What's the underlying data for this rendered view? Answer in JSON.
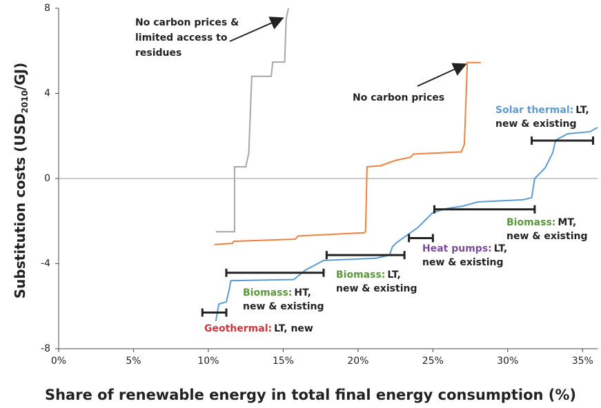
{
  "chart_data": {
    "type": "line",
    "xlabel": "Share of renewable energy in total final energy consumption (%)",
    "ylabel": {
      "text": "Substitution costs (USD",
      "sub": "2010",
      "after": "/GJ)"
    },
    "xlim": [
      0,
      36
    ],
    "ylim": [
      -8,
      8
    ],
    "xticks": [
      {
        "value": 0,
        "label": "0%"
      },
      {
        "value": 5,
        "label": "5%"
      },
      {
        "value": 10,
        "label": "10%"
      },
      {
        "value": 15,
        "label": "15%"
      },
      {
        "value": 20,
        "label": "20%"
      },
      {
        "value": 25,
        "label": "25%"
      },
      {
        "value": 30,
        "label": "30%"
      },
      {
        "value": 35,
        "label": "35%"
      }
    ],
    "yticks": [
      -8,
      -4,
      0,
      4,
      8
    ],
    "zero_line": true,
    "series": [
      {
        "color": "#a6a6a6",
        "x": [
          10.5,
          11.75,
          11.75,
          12.5,
          12.7,
          12.9,
          14.2,
          14.3,
          15.1,
          15.2,
          15.35
        ],
        "values": [
          -2.5,
          -2.5,
          0.55,
          0.55,
          1.2,
          4.8,
          4.8,
          5.47,
          5.47,
          7.5,
          8
        ]
      },
      {
        "color": "#f47f3c",
        "x": [
          10.4,
          11.6,
          11.7,
          15.8,
          16.0,
          20.4,
          20.5,
          20.6,
          21.5,
          22.5,
          23.5,
          23.7,
          26.9,
          27.1,
          27.3,
          28.2
        ],
        "values": [
          -3.1,
          -3.05,
          -2.95,
          -2.85,
          -2.7,
          -2.55,
          -2.5,
          0.55,
          0.6,
          0.85,
          1.0,
          1.15,
          1.25,
          1.6,
          5.45,
          5.45
        ]
      },
      {
        "color": "#5b9bd5",
        "x": [
          10.5,
          10.7,
          11.2,
          11.4,
          11.5,
          15.7,
          16.5,
          17.7,
          21.2,
          22.1,
          22.3,
          22.6,
          23.0,
          24.0,
          25.0,
          26.0,
          27.0,
          28.0,
          31.0,
          31.6,
          31.8,
          32.5,
          33.0,
          33.2,
          34.0,
          35.5,
          36.0
        ],
        "values": [
          -6.7,
          -5.9,
          -5.8,
          -5.2,
          -4.8,
          -4.75,
          -4.3,
          -3.85,
          -3.75,
          -3.6,
          -3.2,
          -3.0,
          -2.8,
          -2.3,
          -1.6,
          -1.4,
          -1.3,
          -1.1,
          -1.0,
          -0.9,
          0,
          0.5,
          1.2,
          1.8,
          2.1,
          2.2,
          2.4
        ]
      }
    ],
    "ranges": [
      {
        "tech": "Geothermal:",
        "desc": [
          "LT, new"
        ],
        "color": "#d1343b",
        "x": [
          9.6,
          11.2
        ],
        "y": -6.3
      },
      {
        "tech": "Biomass:",
        "desc": [
          "HT,",
          "new & existing"
        ],
        "color": "#5a9a3c",
        "x": [
          11.2,
          17.7
        ],
        "y": -4.43
      },
      {
        "tech": "Biomass:",
        "desc": [
          "LT,",
          "new & existing"
        ],
        "color": "#5a9a3c",
        "x": [
          17.9,
          23.1
        ],
        "y": -3.6
      },
      {
        "tech": "Heat pumps:",
        "desc": [
          "LT,",
          "new & existing"
        ],
        "color": "#7e4a9c",
        "x": [
          23.4,
          25.0
        ],
        "y": -2.8
      },
      {
        "tech": "Biomass:",
        "desc": [
          "MT,",
          "new & existing"
        ],
        "color": "#5a9a3c",
        "x": [
          25.1,
          31.8
        ],
        "y": -1.45
      },
      {
        "tech": "Solar thermal:",
        "desc": [
          "LT,",
          "new & existing"
        ],
        "color": "#5b9bd5",
        "x": [
          31.6,
          35.7
        ],
        "y": 1.78
      }
    ],
    "range_color": "#222222",
    "annotations": [
      {
        "lines": [
          "No carbon prices &",
          "limited access to",
          "residues"
        ]
      },
      {
        "lines": [
          "No carbon prices"
        ]
      }
    ]
  }
}
